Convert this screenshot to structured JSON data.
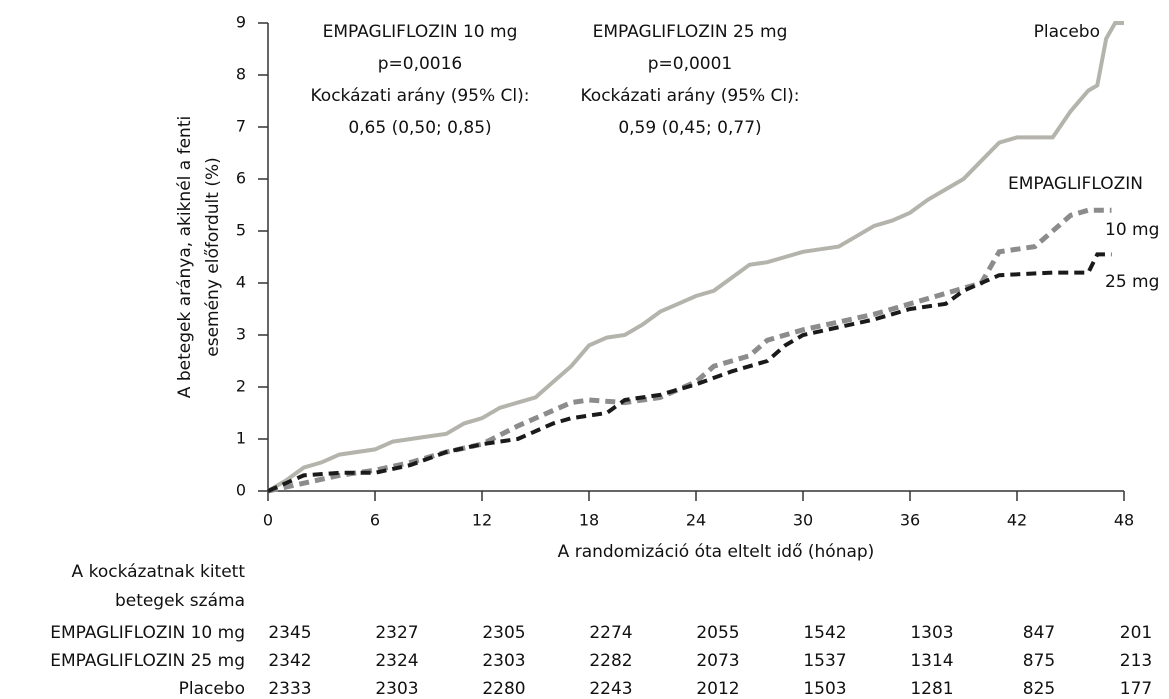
{
  "chart_data": {
    "type": "line",
    "x_label": "A randomizáció óta eltelt idő (hónap)",
    "y_label": [
      "A betegek aránya, akiknél a fenti",
      "esemény előfordult (%)"
    ],
    "xlim": [
      0,
      48
    ],
    "xticks": [
      0,
      6,
      12,
      18,
      24,
      30,
      36,
      42,
      48
    ],
    "ylim": [
      0,
      9
    ],
    "yticks": [
      0,
      1,
      2,
      3,
      4,
      5,
      6,
      7,
      8,
      9
    ],
    "annotations": [
      [
        "EMPAGLIFLOZIN 10 mg",
        "p=0,0016",
        "Kockázati arány (95% Cl):",
        "0,65 (0,50; 0,85)"
      ],
      [
        "EMPAGLIFLOZIN 25 mg",
        "p=0,0001",
        "Kockázati arány (95% Cl):",
        "0,59 (0,45; 0,77)"
      ]
    ],
    "series_group_label": "EMPAGLIFLOZIN",
    "series": [
      {
        "name": "Placebo",
        "color": "#b4b4ac",
        "dash": "solid",
        "x": [
          0,
          1,
          2,
          3,
          4,
          6,
          7,
          9,
          10,
          11,
          12,
          13,
          14,
          15,
          16,
          17,
          18,
          19,
          20,
          21,
          22,
          23,
          24,
          25,
          26,
          27,
          28,
          29,
          30,
          31,
          32,
          33,
          34,
          35,
          36,
          37,
          38,
          39,
          40,
          41,
          42,
          44,
          45,
          46,
          46.5,
          47,
          47.5,
          48
        ],
        "values": [
          0,
          0.2,
          0.45,
          0.55,
          0.7,
          0.8,
          0.95,
          1.05,
          1.1,
          1.3,
          1.4,
          1.6,
          1.7,
          1.8,
          2.1,
          2.4,
          2.8,
          2.95,
          3.0,
          3.2,
          3.45,
          3.6,
          3.75,
          3.85,
          4.1,
          4.35,
          4.4,
          4.5,
          4.6,
          4.65,
          4.7,
          4.9,
          5.1,
          5.2,
          5.35,
          5.6,
          5.8,
          6.0,
          6.35,
          6.7,
          6.8,
          6.8,
          7.3,
          7.7,
          7.8,
          8.7,
          9.0,
          9.0
        ]
      },
      {
        "name": "10 mg",
        "color": "#8c8c8c",
        "dash": "dashed",
        "x": [
          0,
          2,
          4,
          6,
          8,
          10,
          12,
          14,
          16,
          17,
          18,
          20,
          22,
          24,
          25,
          27,
          28,
          30,
          32,
          34,
          36,
          38,
          40,
          41,
          43,
          44,
          45,
          46,
          47.3
        ],
        "values": [
          0,
          0.15,
          0.3,
          0.4,
          0.55,
          0.75,
          0.9,
          1.25,
          1.55,
          1.7,
          1.75,
          1.7,
          1.8,
          2.1,
          2.4,
          2.6,
          2.9,
          3.1,
          3.25,
          3.4,
          3.6,
          3.8,
          4.0,
          4.6,
          4.7,
          5.0,
          5.3,
          5.4,
          5.4
        ]
      },
      {
        "name": "25 mg",
        "color": "#1a1a1a",
        "dash": "dashed",
        "x": [
          0,
          2,
          4,
          6,
          8,
          10,
          12,
          14,
          16,
          17,
          19,
          20,
          22,
          24,
          26,
          28,
          29,
          30,
          32,
          34,
          36,
          38,
          39,
          41,
          44,
          46,
          46.5,
          47.3
        ],
        "values": [
          0,
          0.3,
          0.35,
          0.35,
          0.5,
          0.75,
          0.9,
          1.0,
          1.3,
          1.4,
          1.5,
          1.75,
          1.85,
          2.05,
          2.3,
          2.5,
          2.8,
          3.0,
          3.15,
          3.3,
          3.5,
          3.6,
          3.85,
          4.15,
          4.2,
          4.2,
          4.55,
          4.55
        ]
      }
    ],
    "risk_table": {
      "title": [
        "A kockázatnak kitett",
        "betegek száma"
      ],
      "rows": [
        {
          "label": "EMPAGLIFLOZIN 10 mg",
          "values": [
            2345,
            2327,
            2305,
            2274,
            2055,
            1542,
            1303,
            847,
            201
          ]
        },
        {
          "label": "EMPAGLIFLOZIN 25 mg",
          "values": [
            2342,
            2324,
            2303,
            2282,
            2073,
            1537,
            1314,
            875,
            213
          ]
        },
        {
          "label": "Placebo",
          "values": [
            2333,
            2303,
            2280,
            2243,
            2012,
            1503,
            1281,
            825,
            177
          ]
        }
      ]
    }
  }
}
